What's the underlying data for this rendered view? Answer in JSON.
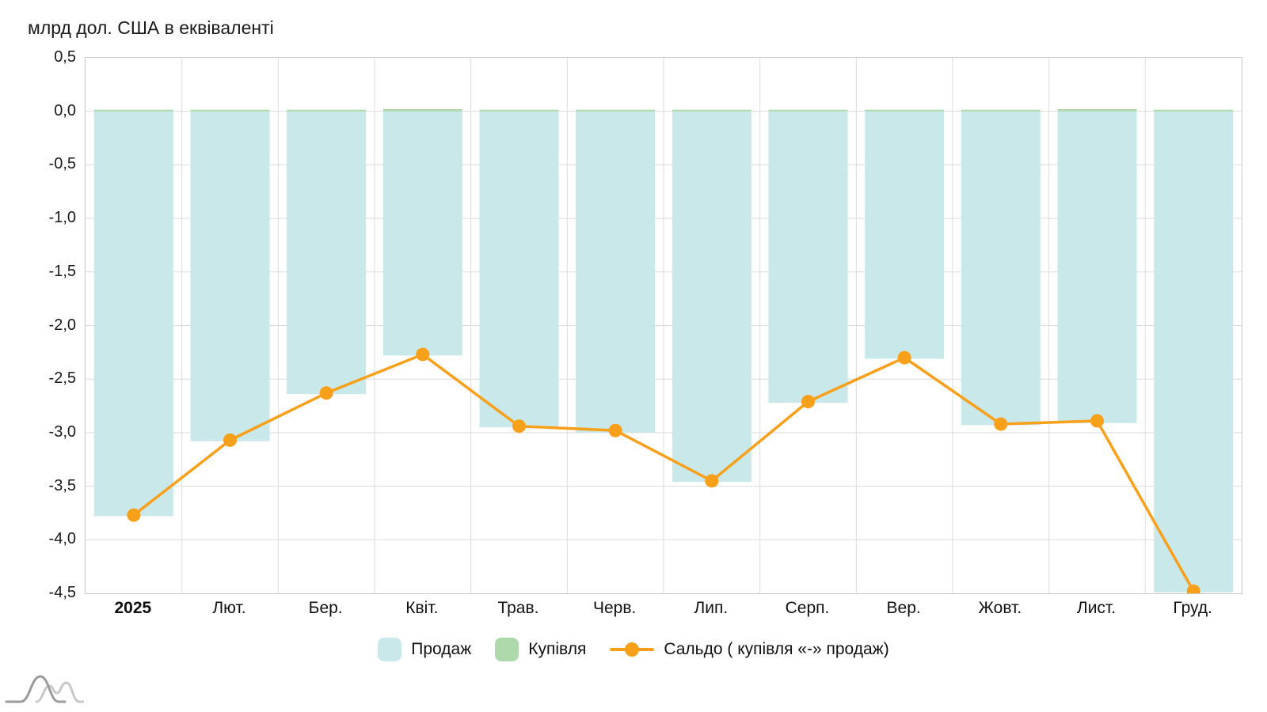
{
  "title": "млрд дол. США в еквіваленті",
  "legend": {
    "sales_label": "Продаж",
    "purchase_label": "Купівля",
    "saldo_label": "Сальдо ( купівля «-» продаж)"
  },
  "colors": {
    "sales": "#c9e8e9",
    "purchase": "#aedaab",
    "saldo": "#f9a01b",
    "grid": "#dcdcdc",
    "border": "#c9c9c9",
    "text": "#1a1a1a"
  },
  "chart_data": {
    "type": "bar",
    "subtype": "bars-with-line-overlay",
    "title": "млрд дол. США в еквіваленті",
    "categories": [
      "2025",
      "Лют.",
      "Бер.",
      "Квіт.",
      "Трав.",
      "Черв.",
      "Лип.",
      "Серп.",
      "Вер.",
      "Жовт.",
      "Лист.",
      "Груд."
    ],
    "series": [
      {
        "name": "Продаж",
        "type": "bar",
        "color": "#c9e8e9",
        "values": [
          -3.78,
          -3.08,
          -2.64,
          -2.28,
          -2.95,
          -3.0,
          -3.46,
          -2.72,
          -2.31,
          -2.93,
          -2.91,
          -4.49
        ]
      },
      {
        "name": "Купівля",
        "type": "bar",
        "color": "#aedaab",
        "values": [
          0.01,
          0.01,
          0.01,
          0.02,
          0.01,
          0.01,
          0.01,
          0.01,
          0.01,
          0.01,
          0.02,
          0.01
        ]
      },
      {
        "name": "Сальдо ( купівля «-» продаж)",
        "type": "line",
        "color": "#f9a01b",
        "values": [
          -3.77,
          -3.07,
          -2.63,
          -2.27,
          -2.94,
          -2.98,
          -3.45,
          -2.71,
          -2.3,
          -2.92,
          -2.89,
          -4.48
        ]
      }
    ],
    "ylabel": "млрд дол. США в еквіваленті",
    "xlabel": "",
    "ylim": [
      -4.5,
      0.5
    ],
    "ytick_step": 0.5,
    "ytick_labels": [
      "0,5",
      "0,0",
      "-0,5",
      "-1,0",
      "-1,5",
      "-2,0",
      "-2,5",
      "-3,0",
      "-3,5",
      "-4,0",
      "-4,5"
    ],
    "grid": true,
    "legend_position": "bottom"
  }
}
